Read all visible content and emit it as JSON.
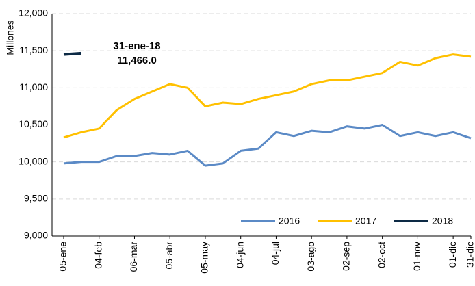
{
  "chart_data": {
    "type": "line",
    "y_label": "Millones",
    "annotation": [
      "31-ene-18",
      "11,466.0"
    ],
    "categories": [
      "05-ene",
      null,
      "04-feb",
      null,
      "06-mar",
      null,
      "05-abr",
      null,
      "05-may",
      null,
      "04-jun",
      null,
      "04-jul",
      null,
      "03-ago",
      null,
      "02-sep",
      null,
      "02-oct",
      null,
      "01-nov",
      null,
      "01-dic",
      "31-dic"
    ],
    "series": [
      {
        "name": "2016",
        "color": "#5b8ac6",
        "values": [
          9980,
          10000,
          10000,
          10080,
          10080,
          10120,
          10100,
          10150,
          9950,
          9980,
          10150,
          10180,
          10400,
          10350,
          10420,
          10400,
          10480,
          10450,
          10500,
          10350,
          10400,
          10350,
          10400,
          10320
        ]
      },
      {
        "name": "2017",
        "color": "#ffc000",
        "values": [
          10330,
          10400,
          10450,
          10700,
          10850,
          10950,
          11050,
          11000,
          10750,
          10800,
          10780,
          10850,
          10900,
          10950,
          11050,
          11100,
          11100,
          11150,
          11200,
          11350,
          11300,
          11400,
          11450,
          11420
        ]
      },
      {
        "name": "2018",
        "color": "#0d2a45",
        "values": [
          11450,
          11466,
          null,
          null,
          null,
          null,
          null,
          null,
          null,
          null,
          null,
          null,
          null,
          null,
          null,
          null,
          null,
          null,
          null,
          null,
          null,
          null,
          null,
          null
        ]
      }
    ],
    "ylim": [
      9000,
      12000
    ],
    "yticks": [
      {
        "value": 9000,
        "label": "9,000"
      },
      {
        "value": 9500,
        "label": "9,500"
      },
      {
        "value": 10000,
        "label": "10,000"
      },
      {
        "value": 10500,
        "label": "10,500"
      },
      {
        "value": 11000,
        "label": "11,000"
      },
      {
        "value": 11500,
        "label": "11,500"
      },
      {
        "value": 12000,
        "label": "12,000"
      }
    ],
    "grid": true,
    "legend": "bottom-right"
  }
}
